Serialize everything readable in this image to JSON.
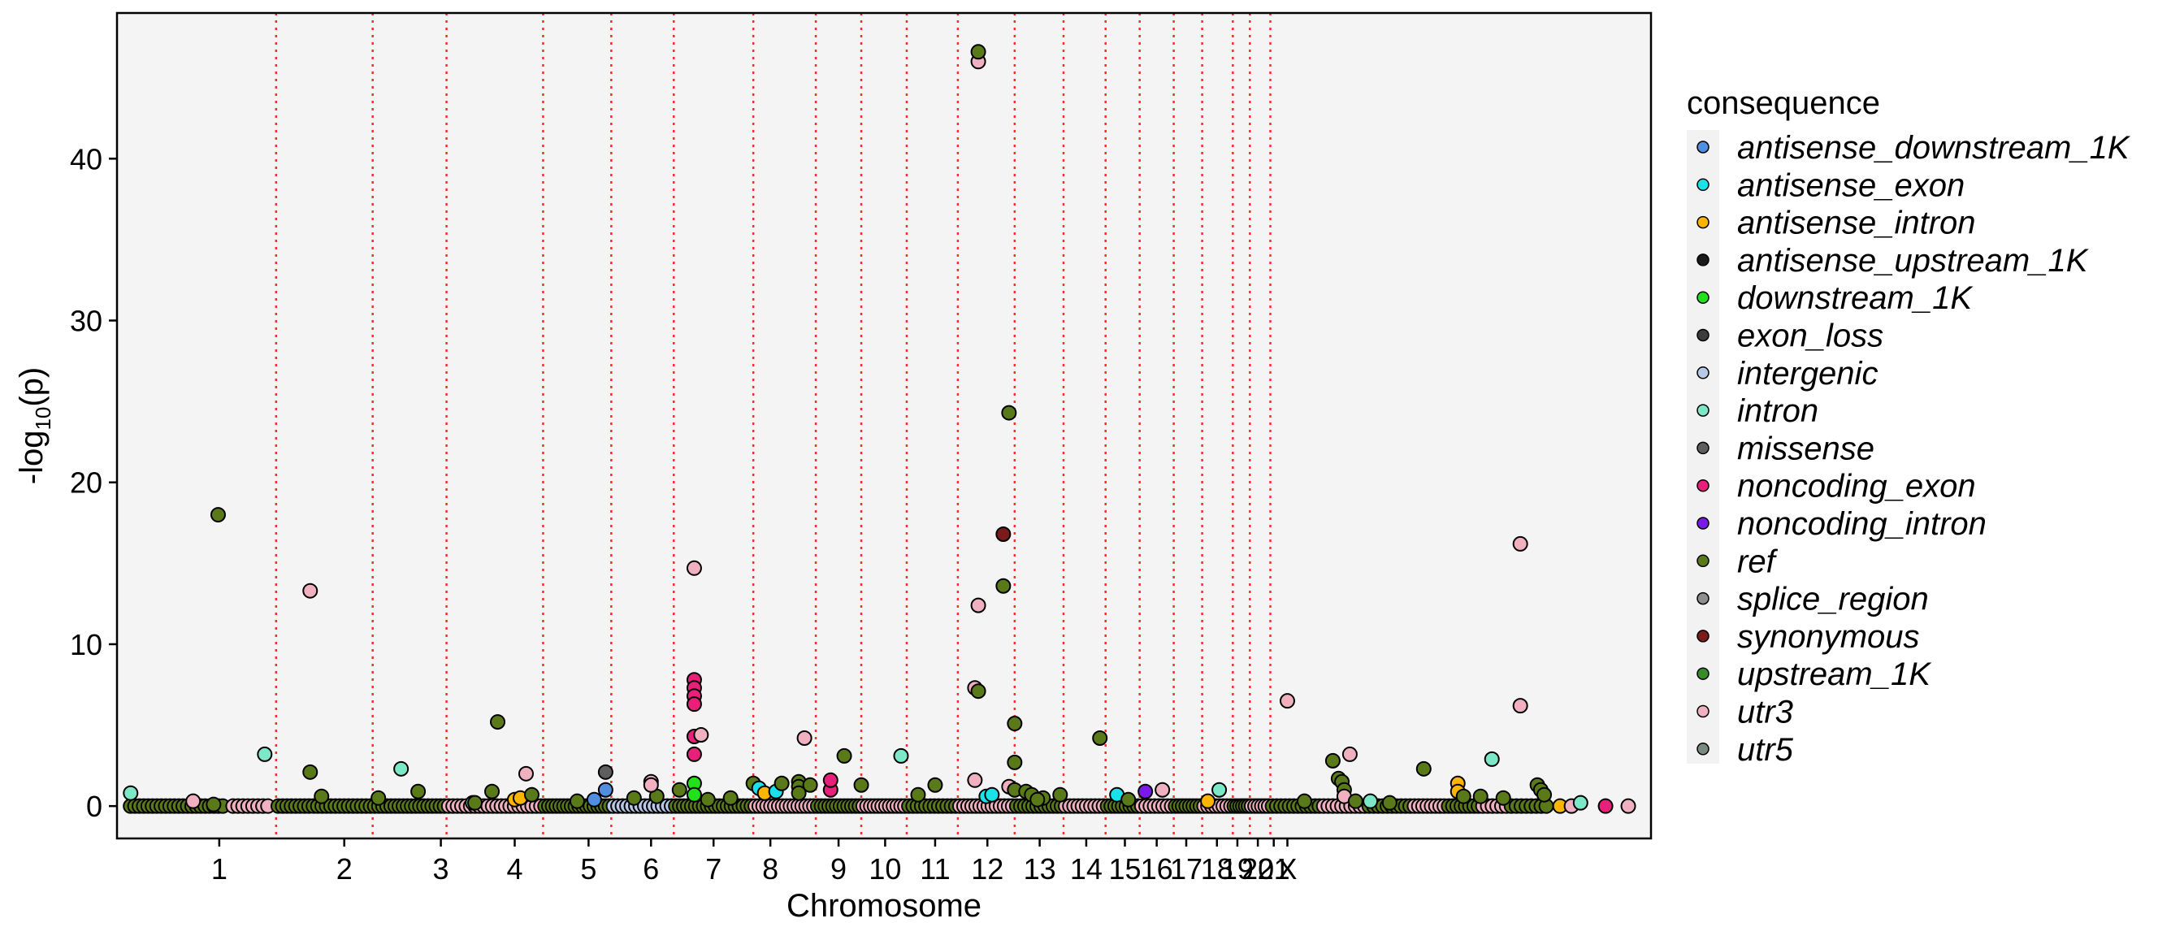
{
  "chart_data": {
    "type": "scatter",
    "title": "",
    "xlabel": "Chromosome",
    "ylabel_main": "-log",
    "ylabel_sub": "10",
    "ylabel_tail": "(p)",
    "ylim": [
      -2,
      49
    ],
    "y_ticks": [
      0,
      10,
      20,
      30,
      40
    ],
    "x_ticks": [
      {
        "label": "1",
        "x": 0.09
      },
      {
        "label": "2",
        "x": 0.2
      },
      {
        "label": "3",
        "x": 0.285
      },
      {
        "label": "4",
        "x": 0.35
      },
      {
        "label": "5",
        "x": 0.415
      },
      {
        "label": "6",
        "x": 0.47
      },
      {
        "label": "7",
        "x": 0.525
      },
      {
        "label": "8",
        "x": 0.575
      },
      {
        "label": "9",
        "x": 0.635
      },
      {
        "label": "10",
        "x": 0.676
      },
      {
        "label": "11",
        "x": 0.72
      },
      {
        "label": "12",
        "x": 0.766
      },
      {
        "label": "13",
        "x": 0.812
      },
      {
        "label": "14",
        "x": 0.853
      },
      {
        "label": "15",
        "x": 0.887
      },
      {
        "label": "16",
        "x": 0.915
      },
      {
        "label": "17",
        "x": 0.941
      },
      {
        "label": "18",
        "x": 0.968
      },
      {
        "label": "19",
        "x": 0.986
      },
      {
        "label": "20",
        "x": 1.004
      },
      {
        "label": "21",
        "x": 1.018
      },
      {
        "label": "X",
        "x": 1.03
      }
    ],
    "chromosome_boundaries": [
      0.14,
      0.225,
      0.29,
      0.375,
      0.435,
      0.49,
      0.56,
      0.615,
      0.655,
      0.695,
      0.74,
      0.79,
      0.833,
      0.87,
      0.9,
      0.93,
      0.955,
      0.982,
      0.997,
      1.015
    ],
    "grid": false,
    "legend": {
      "position": "right",
      "title": "consequence",
      "entries": [
        {
          "name": "antisense_downstream_1K",
          "color": "#4f8ee0"
        },
        {
          "name": "antisense_exon",
          "color": "#19e3e8"
        },
        {
          "name": "antisense_intron",
          "color": "#ffb400"
        },
        {
          "name": "antisense_upstream_1K",
          "color": "#1a1a1a"
        },
        {
          "name": "downstream_1K",
          "color": "#22e01a"
        },
        {
          "name": "exon_loss",
          "color": "#3c3c3c"
        },
        {
          "name": "intergenic",
          "color": "#b8c8e8"
        },
        {
          "name": "intron",
          "color": "#7de8c8"
        },
        {
          "name": "missense",
          "color": "#5e5e5e"
        },
        {
          "name": "noncoding_exon",
          "color": "#e8207a"
        },
        {
          "name": "noncoding_intron",
          "color": "#7a1ae8"
        },
        {
          "name": "ref",
          "color": "#5a7a1a"
        },
        {
          "name": "splice_region",
          "color": "#8e8e8e"
        },
        {
          "name": "synonymous",
          "color": "#7a1a1a"
        },
        {
          "name": "upstream_1K",
          "color": "#3a8a2a"
        },
        {
          "name": "utr3",
          "color": "#f0b0c0"
        },
        {
          "name": "utr5",
          "color": "#7a8a80"
        }
      ]
    },
    "points": [
      {
        "x": 0.012,
        "y": 0.8,
        "c": "intron"
      },
      {
        "x": 0.089,
        "y": 18.0,
        "c": "ref"
      },
      {
        "x": 0.085,
        "y": 0.1,
        "c": "ref"
      },
      {
        "x": 0.13,
        "y": 3.2,
        "c": "intron"
      },
      {
        "x": 0.067,
        "y": 0.3,
        "c": "utr3"
      },
      {
        "x": 0.17,
        "y": 2.1,
        "c": "ref"
      },
      {
        "x": 0.17,
        "y": 13.3,
        "c": "utr3"
      },
      {
        "x": 0.18,
        "y": 0.6,
        "c": "ref"
      },
      {
        "x": 0.23,
        "y": 0.5,
        "c": "ref"
      },
      {
        "x": 0.25,
        "y": 2.3,
        "c": "intron"
      },
      {
        "x": 0.265,
        "y": 0.9,
        "c": "ref"
      },
      {
        "x": 0.33,
        "y": 0.9,
        "c": "ref"
      },
      {
        "x": 0.335,
        "y": 5.2,
        "c": "ref"
      },
      {
        "x": 0.35,
        "y": 0.4,
        "c": "antisense_intron"
      },
      {
        "x": 0.355,
        "y": 0.5,
        "c": "antisense_intron"
      },
      {
        "x": 0.36,
        "y": 2.0,
        "c": "utr3"
      },
      {
        "x": 0.365,
        "y": 0.7,
        "c": "ref"
      },
      {
        "x": 0.405,
        "y": 0.3,
        "c": "ref"
      },
      {
        "x": 0.42,
        "y": 0.4,
        "c": "antisense_downstream_1K"
      },
      {
        "x": 0.313,
        "y": 0.2,
        "c": "intron"
      },
      {
        "x": 0.315,
        "y": 0.2,
        "c": "ref"
      },
      {
        "x": 0.43,
        "y": 1.0,
        "c": "antisense_downstream_1K"
      },
      {
        "x": 0.43,
        "y": 2.1,
        "c": "missense"
      },
      {
        "x": 0.455,
        "y": 0.5,
        "c": "ref"
      },
      {
        "x": 0.475,
        "y": 0.6,
        "c": "ref"
      },
      {
        "x": 0.47,
        "y": 1.5,
        "c": "utr3"
      },
      {
        "x": 0.47,
        "y": 1.3,
        "c": "utr3"
      },
      {
        "x": 0.495,
        "y": 1.0,
        "c": "ref"
      },
      {
        "x": 0.508,
        "y": 14.7,
        "c": "utr3"
      },
      {
        "x": 0.508,
        "y": 7.8,
        "c": "noncoding_exon"
      },
      {
        "x": 0.508,
        "y": 7.3,
        "c": "noncoding_exon"
      },
      {
        "x": 0.508,
        "y": 6.8,
        "c": "noncoding_exon"
      },
      {
        "x": 0.508,
        "y": 6.3,
        "c": "noncoding_exon"
      },
      {
        "x": 0.508,
        "y": 4.3,
        "c": "noncoding_exon"
      },
      {
        "x": 0.514,
        "y": 4.4,
        "c": "utr3"
      },
      {
        "x": 0.508,
        "y": 3.2,
        "c": "noncoding_exon"
      },
      {
        "x": 0.508,
        "y": 1.4,
        "c": "downstream_1K"
      },
      {
        "x": 0.508,
        "y": 0.7,
        "c": "downstream_1K"
      },
      {
        "x": 0.52,
        "y": 0.4,
        "c": "ref"
      },
      {
        "x": 0.54,
        "y": 0.5,
        "c": "ref"
      },
      {
        "x": 0.56,
        "y": 1.4,
        "c": "ref"
      },
      {
        "x": 0.565,
        "y": 1.1,
        "c": "antisense_exon"
      },
      {
        "x": 0.57,
        "y": 0.8,
        "c": "antisense_intron"
      },
      {
        "x": 0.58,
        "y": 0.9,
        "c": "antisense_exon"
      },
      {
        "x": 0.585,
        "y": 1.4,
        "c": "ref"
      },
      {
        "x": 0.6,
        "y": 1.5,
        "c": "ref"
      },
      {
        "x": 0.6,
        "y": 1.2,
        "c": "ref"
      },
      {
        "x": 0.6,
        "y": 0.8,
        "c": "ref"
      },
      {
        "x": 0.61,
        "y": 1.3,
        "c": "ref"
      },
      {
        "x": 0.605,
        "y": 4.2,
        "c": "utr3"
      },
      {
        "x": 0.628,
        "y": 1.0,
        "c": "noncoding_exon"
      },
      {
        "x": 0.628,
        "y": 1.6,
        "c": "noncoding_exon"
      },
      {
        "x": 0.64,
        "y": 3.1,
        "c": "ref"
      },
      {
        "x": 0.655,
        "y": 1.3,
        "c": "ref"
      },
      {
        "x": 0.69,
        "y": 3.1,
        "c": "intron"
      },
      {
        "x": 0.705,
        "y": 0.7,
        "c": "ref"
      },
      {
        "x": 0.72,
        "y": 1.3,
        "c": "ref"
      },
      {
        "x": 0.755,
        "y": 1.6,
        "c": "utr3"
      },
      {
        "x": 0.755,
        "y": 7.3,
        "c": "utr3"
      },
      {
        "x": 0.758,
        "y": 7.1,
        "c": "ref"
      },
      {
        "x": 0.758,
        "y": 12.4,
        "c": "utr3"
      },
      {
        "x": 0.758,
        "y": 46.0,
        "c": "utr3"
      },
      {
        "x": 0.758,
        "y": 46.6,
        "c": "ref"
      },
      {
        "x": 0.765,
        "y": 0.6,
        "c": "antisense_exon"
      },
      {
        "x": 0.77,
        "y": 0.7,
        "c": "antisense_exon"
      },
      {
        "x": 0.78,
        "y": 16.8,
        "c": "synonymous"
      },
      {
        "x": 0.78,
        "y": 13.6,
        "c": "ref"
      },
      {
        "x": 0.785,
        "y": 24.3,
        "c": "ref"
      },
      {
        "x": 0.785,
        "y": 1.2,
        "c": "utr3"
      },
      {
        "x": 0.79,
        "y": 5.1,
        "c": "ref"
      },
      {
        "x": 0.79,
        "y": 2.7,
        "c": "ref"
      },
      {
        "x": 0.79,
        "y": 1.0,
        "c": "ref"
      },
      {
        "x": 0.8,
        "y": 0.9,
        "c": "ref"
      },
      {
        "x": 0.805,
        "y": 0.7,
        "c": "ref"
      },
      {
        "x": 0.83,
        "y": 0.7,
        "c": "ref"
      },
      {
        "x": 0.815,
        "y": 0.5,
        "c": "ref"
      },
      {
        "x": 0.81,
        "y": 0.4,
        "c": "ref"
      },
      {
        "x": 0.865,
        "y": 4.2,
        "c": "ref"
      },
      {
        "x": 0.88,
        "y": 0.7,
        "c": "antisense_exon"
      },
      {
        "x": 0.89,
        "y": 0.4,
        "c": "ref"
      },
      {
        "x": 0.905,
        "y": 0.9,
        "c": "noncoding_intron"
      },
      {
        "x": 0.92,
        "y": 1.0,
        "c": "utr3"
      },
      {
        "x": 0.97,
        "y": 1.0,
        "c": "intron"
      },
      {
        "x": 0.96,
        "y": 0.3,
        "c": "antisense_intron"
      },
      {
        "x": 1.03,
        "y": 6.5,
        "c": "utr3"
      },
      {
        "x": 1.045,
        "y": 0.3,
        "c": "ref"
      },
      {
        "x": 1.07,
        "y": 2.8,
        "c": "ref"
      },
      {
        "x": 1.075,
        "y": 1.7,
        "c": "ref"
      },
      {
        "x": 1.078,
        "y": 1.5,
        "c": "ref"
      },
      {
        "x": 1.08,
        "y": 1.0,
        "c": "ref"
      },
      {
        "x": 1.085,
        "y": 3.2,
        "c": "utr3"
      },
      {
        "x": 1.08,
        "y": 0.6,
        "c": "utr3"
      },
      {
        "x": 1.09,
        "y": 0.3,
        "c": "ref"
      },
      {
        "x": 1.103,
        "y": 0.3,
        "c": "intron"
      },
      {
        "x": 1.12,
        "y": 0.2,
        "c": "ref"
      },
      {
        "x": 1.15,
        "y": 2.3,
        "c": "ref"
      },
      {
        "x": 1.18,
        "y": 1.4,
        "c": "antisense_intron"
      },
      {
        "x": 1.18,
        "y": 0.9,
        "c": "antisense_intron"
      },
      {
        "x": 1.185,
        "y": 0.6,
        "c": "ref"
      },
      {
        "x": 1.2,
        "y": 0.6,
        "c": "ref"
      },
      {
        "x": 1.21,
        "y": 2.9,
        "c": "intron"
      },
      {
        "x": 1.22,
        "y": 0.5,
        "c": "ref"
      },
      {
        "x": 1.235,
        "y": 16.2,
        "c": "utr3"
      },
      {
        "x": 1.235,
        "y": 6.2,
        "c": "utr3"
      },
      {
        "x": 1.25,
        "y": 1.3,
        "c": "ref"
      },
      {
        "x": 1.253,
        "y": 1.0,
        "c": "ref"
      },
      {
        "x": 1.256,
        "y": 0.7,
        "c": "ref"
      },
      {
        "x": 1.27,
        "y": 0.0,
        "c": "antisense_intron"
      },
      {
        "x": 1.28,
        "y": 0.0,
        "c": "utr3"
      },
      {
        "x": 1.288,
        "y": 0.2,
        "c": "intron"
      },
      {
        "x": 1.31,
        "y": 0.0,
        "c": "noncoding_exon"
      },
      {
        "x": 1.33,
        "y": 0.0,
        "c": "utr3"
      }
    ],
    "baseline": [
      {
        "from": 0.01,
        "to": 0.095,
        "c": "ref",
        "n": 22
      },
      {
        "from": 0.1,
        "to": 0.135,
        "c": "utr3",
        "n": 8
      },
      {
        "from": 0.14,
        "to": 0.225,
        "c": "ref",
        "n": 22
      },
      {
        "from": 0.225,
        "to": 0.29,
        "c": "ref",
        "n": 18
      },
      {
        "from": 0.29,
        "to": 0.375,
        "c": "utr3",
        "n": 22
      },
      {
        "from": 0.375,
        "to": 0.435,
        "c": "ref",
        "n": 18
      },
      {
        "from": 0.435,
        "to": 0.49,
        "c": "intergenic",
        "n": 14
      },
      {
        "from": 0.49,
        "to": 0.56,
        "c": "ref",
        "n": 20
      },
      {
        "from": 0.56,
        "to": 0.615,
        "c": "utr3",
        "n": 16
      },
      {
        "from": 0.615,
        "to": 0.655,
        "c": "ref",
        "n": 12
      },
      {
        "from": 0.655,
        "to": 0.695,
        "c": "utr3",
        "n": 12
      },
      {
        "from": 0.695,
        "to": 0.74,
        "c": "ref",
        "n": 12
      },
      {
        "from": 0.74,
        "to": 0.79,
        "c": "utr3",
        "n": 14
      },
      {
        "from": 0.79,
        "to": 0.833,
        "c": "ref",
        "n": 12
      },
      {
        "from": 0.833,
        "to": 0.87,
        "c": "utr3",
        "n": 10
      },
      {
        "from": 0.87,
        "to": 0.9,
        "c": "ref",
        "n": 9
      },
      {
        "from": 0.9,
        "to": 0.93,
        "c": "utr3",
        "n": 8
      },
      {
        "from": 0.93,
        "to": 0.955,
        "c": "ref",
        "n": 8
      },
      {
        "from": 0.955,
        "to": 0.982,
        "c": "utr3",
        "n": 8
      },
      {
        "from": 0.982,
        "to": 0.997,
        "c": "ref",
        "n": 6
      },
      {
        "from": 0.997,
        "to": 1.015,
        "c": "utr3",
        "n": 6
      },
      {
        "from": 1.015,
        "to": 1.06,
        "c": "ref",
        "n": 12
      },
      {
        "from": 1.06,
        "to": 1.1,
        "c": "utr3",
        "n": 10
      },
      {
        "from": 1.1,
        "to": 1.14,
        "c": "ref",
        "n": 10
      },
      {
        "from": 1.14,
        "to": 1.17,
        "c": "utr3",
        "n": 8
      },
      {
        "from": 1.17,
        "to": 1.2,
        "c": "ref",
        "n": 8
      },
      {
        "from": 1.2,
        "to": 1.225,
        "c": "utr3",
        "n": 6
      },
      {
        "from": 1.225,
        "to": 1.26,
        "c": "ref",
        "n": 8
      }
    ]
  }
}
